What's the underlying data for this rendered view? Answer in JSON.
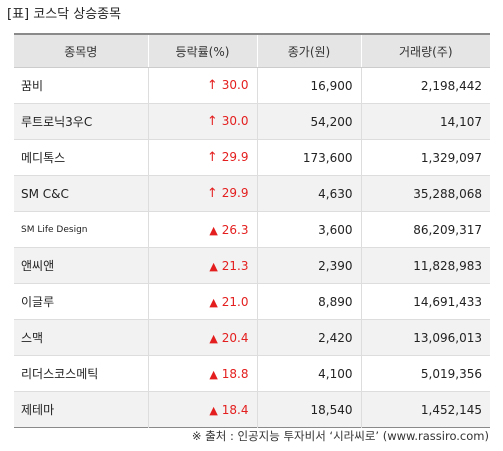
{
  "title": "[표] 코스닥 상승종목",
  "columns": [
    "종목명",
    "등락률(%)",
    "종가(원)",
    "거래량(주)"
  ],
  "rows": [
    {
      "name": "꿈비",
      "icon": "up-arrow-icon",
      "symbol": "↑",
      "rate": "30.0",
      "price": "16,900",
      "volume": "2,198,442"
    },
    {
      "name": "루트로닉3우C",
      "icon": "up-arrow-icon",
      "symbol": "↑",
      "rate": "30.0",
      "price": "54,200",
      "volume": "14,107"
    },
    {
      "name": "메디톡스",
      "icon": "up-arrow-icon",
      "symbol": "↑",
      "rate": "29.9",
      "price": "173,600",
      "volume": "1,329,097"
    },
    {
      "name": "SM C&C",
      "icon": "up-arrow-icon",
      "symbol": "↑",
      "rate": "29.9",
      "price": "4,630",
      "volume": "35,288,068"
    },
    {
      "name": "SM Life Design",
      "icon": "up-triangle-icon",
      "symbol": "▲",
      "rate": "26.3",
      "price": "3,600",
      "volume": "86,209,317"
    },
    {
      "name": "앤씨앤",
      "icon": "up-triangle-icon",
      "symbol": "▲",
      "rate": "21.3",
      "price": "2,390",
      "volume": "11,828,983"
    },
    {
      "name": "이글루",
      "icon": "up-triangle-icon",
      "symbol": "▲",
      "rate": "21.0",
      "price": "8,890",
      "volume": "14,691,433"
    },
    {
      "name": "스맥",
      "icon": "up-triangle-icon",
      "symbol": "▲",
      "rate": "20.4",
      "price": "2,420",
      "volume": "13,096,013"
    },
    {
      "name": "리더스코스메틱",
      "icon": "up-triangle-icon",
      "symbol": "▲",
      "rate": "18.8",
      "price": "4,100",
      "volume": "5,019,356"
    },
    {
      "name": "제테마",
      "icon": "up-triangle-icon",
      "symbol": "▲",
      "rate": "18.4",
      "price": "18,540",
      "volume": "1,452,145"
    }
  ],
  "source": "※ 출처 : 인공지능 투자비서 ‘시라씨로’ (www.rassiro.com)",
  "colors": {
    "up": "#e41e1e",
    "header_bg": "#e5e5e5",
    "alt_row_bg": "#f2f2f2"
  }
}
